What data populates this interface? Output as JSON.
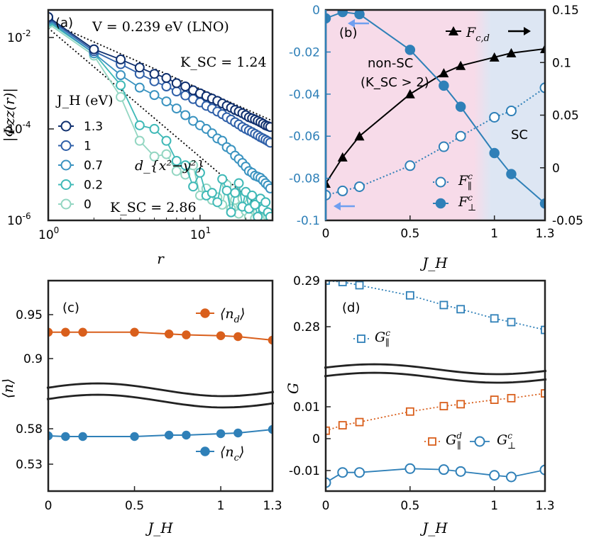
{
  "chart_data": [
    {
      "panel": "a",
      "type": "line",
      "title": "(a)",
      "annotation_top": "V = 0.239 eV (LNO)",
      "annotation_k1": "K_SC = 1.24",
      "annotation_k2": "K_SC = 2.86",
      "annotation_sym": "d_{x²−y²}",
      "xlabel": "r",
      "ylabel": "|Φzz(r)|",
      "xscale": "log",
      "yscale": "log",
      "xlim": [
        1,
        30
      ],
      "ylim": [
        1e-06,
        0.04
      ],
      "xticks": [
        {
          "v": 1,
          "l": "10^0"
        },
        {
          "v": 10,
          "l": "10^1"
        }
      ],
      "yticks": [
        {
          "v": 0.01,
          "l": "10^-2"
        },
        {
          "v": 0.0001,
          "l": "10^-4"
        },
        {
          "v": 1e-06,
          "l": "10^-6"
        }
      ],
      "legend_title": "J_H (eV)",
      "colors": {
        "1.3": "#0f2f6e",
        "1": "#2e5fa8",
        "0.7": "#3a93c0",
        "0.2": "#3fb9b7",
        "0": "#93d6c2"
      },
      "series": [
        {
          "name": "1.3",
          "x": [
            1,
            2,
            3,
            4,
            5,
            6,
            7,
            8,
            9,
            10,
            11,
            12,
            13,
            14,
            15,
            16,
            17,
            18,
            19,
            20,
            21,
            22,
            23,
            24,
            25,
            26,
            27,
            28,
            29
          ],
          "y": [
            0.028,
            0.0055,
            0.0033,
            0.0022,
            0.0016,
            0.0013,
            0.001,
            0.00085,
            0.0007,
            0.0006,
            0.00052,
            0.00046,
            0.00041,
            0.00036,
            0.00032,
            0.00029,
            0.00026,
            0.00024,
            0.00022,
            0.0002,
            0.00018,
            0.00017,
            0.00016,
            0.00015,
            0.00014,
            0.00013,
            0.00012,
            0.000115,
            0.00011
          ]
        },
        {
          "name": "1",
          "x": [
            1,
            2,
            3,
            4,
            5,
            6,
            7,
            8,
            9,
            10,
            11,
            12,
            13,
            14,
            15,
            16,
            17,
            18,
            19,
            20,
            21,
            22,
            23,
            24,
            25,
            26,
            27,
            28,
            29
          ],
          "y": [
            0.026,
            0.005,
            0.0026,
            0.0016,
            0.0011,
            0.00085,
            0.00066,
            0.00054,
            0.00045,
            0.00038,
            0.00032,
            0.00028,
            0.00024,
            0.00021,
            0.00018,
            0.00016,
            0.00014,
            0.000125,
            0.00011,
            0.0001,
            9.2e-05,
            8.5e-05,
            7.8e-05,
            7.2e-05,
            6.6e-05,
            6.2e-05,
            5.8e-05,
            5.4e-05,
            5e-05
          ]
        },
        {
          "name": "0.7",
          "x": [
            1,
            2,
            3,
            4,
            5,
            6,
            7,
            8,
            9,
            10,
            11,
            12,
            13,
            14,
            15,
            16,
            17,
            18,
            19,
            20,
            21,
            22,
            23,
            24,
            25,
            26,
            27,
            28,
            29
          ],
          "y": [
            0.024,
            0.0045,
            0.0015,
            0.0008,
            0.00055,
            0.0004,
            0.00028,
            0.0002,
            0.00015,
            0.00012,
            0.0001,
            8e-05,
            6.2e-05,
            5.5e-05,
            4e-05,
            3.5e-05,
            2.6e-05,
            2.2e-05,
            1.8e-05,
            1.5e-05,
            1.2e-05,
            1.1e-05,
            9.5e-06,
            9e-06,
            8.5e-06,
            7.5e-06,
            6.5e-06,
            5.8e-06,
            5e-06
          ]
        },
        {
          "name": "0.2",
          "x": [
            1,
            2,
            3,
            4,
            5,
            6,
            7,
            8,
            9,
            10,
            11,
            12,
            13,
            14,
            15,
            16,
            17,
            18,
            19,
            20,
            21,
            22,
            23,
            24,
            25,
            26,
            27,
            28,
            29
          ],
          "y": [
            0.022,
            0.0045,
            0.0009,
            0.00012,
            0.0001,
            5.5e-05,
            2e-05,
            1.6e-05,
            5.5e-06,
            1.1e-05,
            3.5e-06,
            4e-06,
            2.5e-06,
            8e-06,
            4.5e-06,
            1.5e-06,
            4e-06,
            6.5e-06,
            2e-06,
            4.2e-06,
            1.8e-06,
            3.5e-06,
            2.2e-06,
            1.2e-06,
            3e-06,
            1.8e-06,
            2.5e-06,
            1.5e-06,
            1.2e-06
          ]
        },
        {
          "name": "0",
          "x": [
            1,
            2,
            3,
            4,
            5,
            6,
            7,
            8,
            9,
            10,
            11,
            12,
            13,
            14,
            15,
            16,
            17,
            18,
            19,
            20,
            21,
            22,
            23,
            24,
            25,
            26,
            27,
            28,
            29
          ],
          "y": [
            0.02,
            0.004,
            0.0005,
            5.5e-05,
            2.5e-05,
            2.8e-05,
            1.2e-05,
            1e-05,
            1.6e-05,
            3.5e-06,
            5e-06,
            2.8e-06,
            3.2e-06,
            2.2e-06,
            6e-06,
            1.8e-06,
            2.8e-06,
            1.4e-06,
            3e-06,
            1.6e-06,
            1.2e-06,
            2e-06,
            1.1e-06,
            1.5e-06,
            2.2e-06,
            1.2e-06,
            1.6e-06,
            1.2e-06,
            1.1e-06
          ]
        }
      ]
    },
    {
      "panel": "b",
      "type": "line",
      "title": "(b)",
      "xlabel": "J_H",
      "xlim": [
        0,
        1.3
      ],
      "xticks": [
        {
          "v": 0,
          "l": "0"
        },
        {
          "v": 0.5,
          "l": "0.5"
        },
        {
          "v": 1,
          "l": "1"
        },
        {
          "v": 1.3,
          "l": "1.3"
        }
      ],
      "ylim_left": [
        -0.1,
        0
      ],
      "yticks_left": [
        {
          "v": 0,
          "l": "0"
        },
        {
          "v": -0.02,
          "l": "-0.02"
        },
        {
          "v": -0.04,
          "l": "-0.04"
        },
        {
          "v": -0.06,
          "l": "-0.06"
        },
        {
          "v": -0.08,
          "l": "-0.08"
        },
        {
          "v": -0.1,
          "l": "-0.1"
        }
      ],
      "ylim_right": [
        -0.05,
        0.15
      ],
      "yticks_right": [
        {
          "v": 0.15,
          "l": "0.15"
        },
        {
          "v": 0.1,
          "l": "0.1"
        },
        {
          "v": 0.05,
          "l": "0.05"
        },
        {
          "v": 0,
          "l": "0"
        },
        {
          "v": -0.05,
          "l": "-0.05"
        }
      ],
      "regions": [
        {
          "label": "non-SC",
          "label2": "(K_SC > 2)",
          "from": 0,
          "to": 0.93,
          "color": "#f7dbe9"
        },
        {
          "label": "SC",
          "from": 0.93,
          "to": 1.3,
          "color": "#dde6f3"
        }
      ],
      "region_text_color": "#e8604c",
      "left_axis_color": "#2f80b8",
      "series": [
        {
          "name": "F_c,d",
          "axis": "right",
          "marker": "triangle",
          "color": "#000000",
          "x": [
            0,
            0.1,
            0.2,
            0.5,
            0.7,
            0.8,
            1,
            1.1,
            1.3
          ],
          "y": [
            -0.015,
            0.01,
            0.03,
            0.07,
            0.09,
            0.097,
            0.105,
            0.109,
            0.113
          ]
        },
        {
          "name": "F^c_∥",
          "axis": "left",
          "marker": "open-circle",
          "color": "#2f80b8",
          "dash": "dotted",
          "x": [
            0,
            0.1,
            0.2,
            0.5,
            0.7,
            0.8,
            1,
            1.1,
            1.3
          ],
          "y": [
            -0.088,
            -0.086,
            -0.084,
            -0.074,
            -0.065,
            -0.06,
            -0.051,
            -0.048,
            -0.037
          ]
        },
        {
          "name": "F^c_⊥",
          "axis": "left",
          "marker": "filled-circle",
          "color": "#2f80b8",
          "x": [
            0,
            0.1,
            0.2,
            0.5,
            0.7,
            0.8,
            1,
            1.1,
            1.3
          ],
          "y": [
            -0.004,
            -0.001,
            -0.002,
            -0.019,
            -0.036,
            -0.046,
            -0.068,
            -0.078,
            -0.092
          ]
        }
      ]
    },
    {
      "panel": "c",
      "type": "line",
      "title": "(c)",
      "xlabel": "J_H",
      "ylabel": "⟨n⟩",
      "xlim": [
        0,
        1.3
      ],
      "xticks": [
        {
          "v": 0,
          "l": "0"
        },
        {
          "v": 0.5,
          "l": "0.5"
        },
        {
          "v": 1,
          "l": "1"
        },
        {
          "v": 1.3,
          "l": "1.3"
        }
      ],
      "yticks": [
        {
          "l": "0.95"
        },
        {
          "l": "0.9"
        },
        {
          "l": "0.58"
        },
        {
          "l": "0.53"
        }
      ],
      "broken_axis": true,
      "series": [
        {
          "name": "⟨n_d⟩",
          "color": "#d95f1c",
          "x": [
            0,
            0.1,
            0.2,
            0.5,
            0.7,
            0.8,
            1,
            1.1,
            1.3
          ],
          "y": [
            0.93,
            0.93,
            0.93,
            0.93,
            0.928,
            0.927,
            0.926,
            0.925,
            0.921
          ]
        },
        {
          "name": "⟨n_c⟩",
          "color": "#2f80b8",
          "x": [
            0,
            0.1,
            0.2,
            0.5,
            0.7,
            0.8,
            1,
            1.1,
            1.3
          ],
          "y": [
            0.57,
            0.569,
            0.569,
            0.569,
            0.571,
            0.571,
            0.573,
            0.574,
            0.579
          ]
        }
      ]
    },
    {
      "panel": "d",
      "type": "line",
      "title": "(d)",
      "xlabel": "J_H",
      "ylabel": "G",
      "xlim": [
        0,
        1.3
      ],
      "xticks": [
        {
          "v": 0,
          "l": "0"
        },
        {
          "v": 0.5,
          "l": "0.5"
        },
        {
          "v": 1,
          "l": "1"
        },
        {
          "v": 1.3,
          "l": "1.3"
        }
      ],
      "yticks": [
        {
          "l": "0.29"
        },
        {
          "l": "0.28"
        },
        {
          "l": "0.01"
        },
        {
          "l": "0"
        },
        {
          "l": "-0.01"
        }
      ],
      "broken_axis": true,
      "series": [
        {
          "name": "G^c_∥",
          "color": "#2f80b8",
          "marker": "open-square",
          "dash": "dotted",
          "x": [
            0,
            0.1,
            0.2,
            0.5,
            0.7,
            0.8,
            1,
            1.1,
            1.3
          ],
          "y": [
            0.29,
            0.2897,
            0.289,
            0.2868,
            0.2847,
            0.2838,
            0.2818,
            0.281,
            0.2793
          ]
        },
        {
          "name": "G^d_∥",
          "color": "#d95f1c",
          "marker": "open-square",
          "dash": "dotted",
          "x": [
            0,
            0.1,
            0.2,
            0.5,
            0.7,
            0.8,
            1,
            1.1,
            1.3
          ],
          "y": [
            0.0025,
            0.0042,
            0.0052,
            0.0085,
            0.0102,
            0.0108,
            0.0122,
            0.0127,
            0.0142
          ]
        },
        {
          "name": "G^c_⊥",
          "color": "#2f80b8",
          "marker": "open-circle",
          "x": [
            0,
            0.1,
            0.2,
            0.5,
            0.7,
            0.8,
            1,
            1.1,
            1.3
          ],
          "y": [
            -0.0138,
            -0.0106,
            -0.0106,
            -0.0094,
            -0.0097,
            -0.0103,
            -0.0115,
            -0.012,
            -0.0098
          ]
        }
      ]
    }
  ]
}
